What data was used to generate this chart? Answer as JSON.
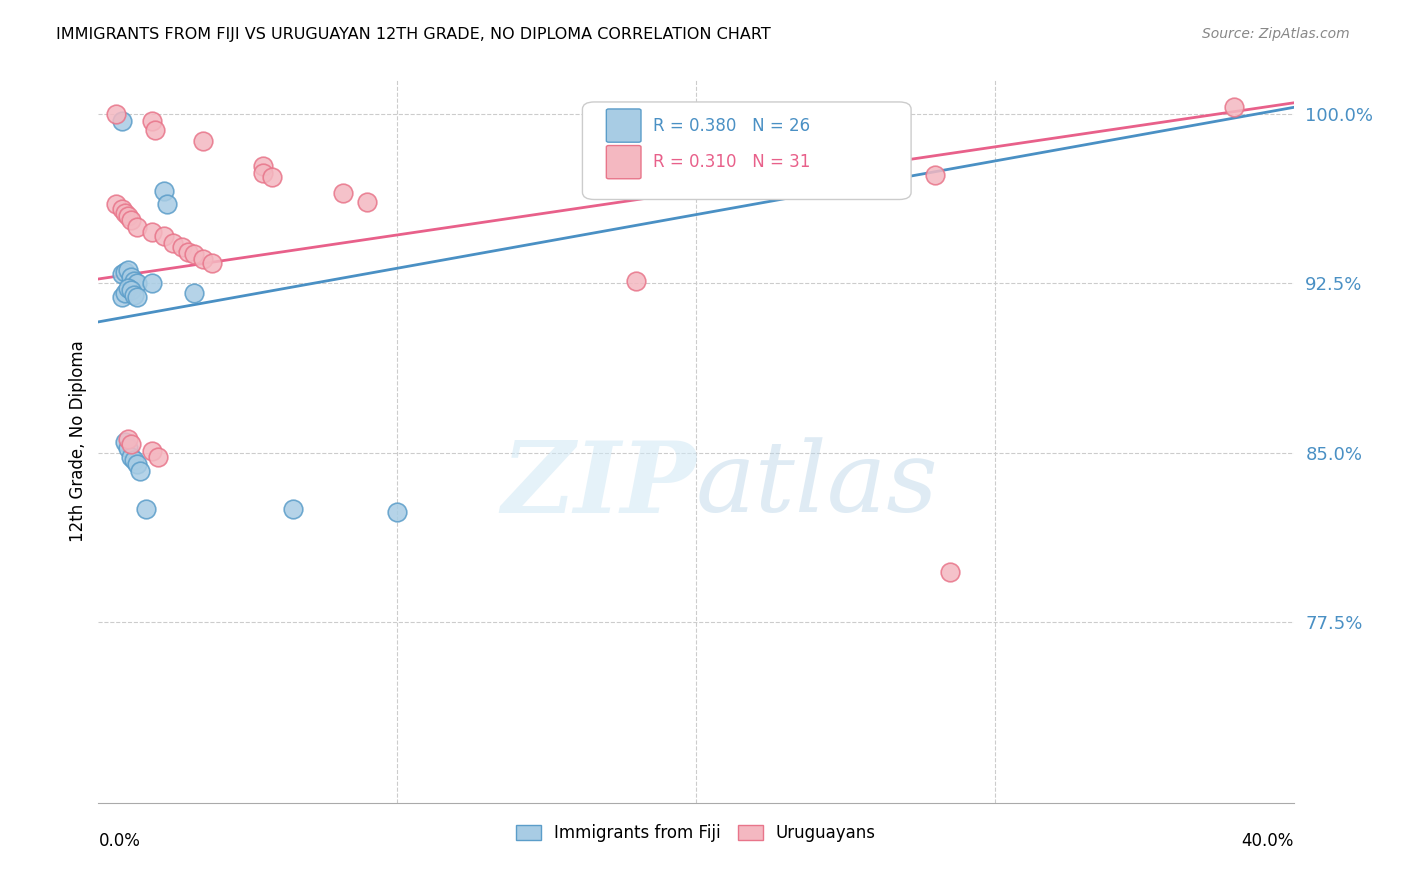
{
  "title": "IMMIGRANTS FROM FIJI VS URUGUAYAN 12TH GRADE, NO DIPLOMA CORRELATION CHART",
  "source": "Source: ZipAtlas.com",
  "ylabel": "12th Grade, No Diploma",
  "xlim": [
    0.0,
    0.4
  ],
  "ylim": [
    0.695,
    1.015
  ],
  "ytick_vals": [
    0.775,
    0.85,
    0.925,
    1.0
  ],
  "ytick_labels": [
    "77.5%",
    "85.0%",
    "92.5%",
    "100.0%"
  ],
  "legend_r1": "R = 0.380",
  "legend_n1": "N = 26",
  "legend_r2": "R = 0.310",
  "legend_n2": "N = 31",
  "legend_label1": "Immigrants from Fiji",
  "legend_label2": "Uruguayans",
  "fiji_color": "#a8cce4",
  "fiji_edge_color": "#5b9dc9",
  "uruguayan_color": "#f4b8c1",
  "uruguayan_edge_color": "#e8758a",
  "trend_blue": "#4a90c4",
  "trend_pink": "#e8608a",
  "watermark_color": "#daeaf5",
  "fiji_x": [
    0.008,
    0.022,
    0.023,
    0.008,
    0.009,
    0.01,
    0.011,
    0.012,
    0.013,
    0.008,
    0.009,
    0.01,
    0.011,
    0.012,
    0.013,
    0.009,
    0.01,
    0.011,
    0.012,
    0.013,
    0.014,
    0.016,
    0.032,
    0.018,
    0.065,
    0.1
  ],
  "fiji_y": [
    0.997,
    0.966,
    0.96,
    0.929,
    0.93,
    0.931,
    0.928,
    0.926,
    0.925,
    0.919,
    0.921,
    0.923,
    0.922,
    0.92,
    0.919,
    0.855,
    0.852,
    0.848,
    0.847,
    0.845,
    0.842,
    0.825,
    0.921,
    0.925,
    0.825,
    0.824
  ],
  "uruguayan_x": [
    0.006,
    0.018,
    0.019,
    0.035,
    0.006,
    0.008,
    0.009,
    0.01,
    0.011,
    0.013,
    0.018,
    0.022,
    0.025,
    0.028,
    0.03,
    0.032,
    0.035,
    0.038,
    0.055,
    0.055,
    0.058,
    0.082,
    0.09,
    0.01,
    0.011,
    0.018,
    0.02,
    0.18,
    0.28,
    0.38,
    0.285
  ],
  "uruguayan_y": [
    1.0,
    0.997,
    0.993,
    0.988,
    0.96,
    0.958,
    0.956,
    0.955,
    0.953,
    0.95,
    0.948,
    0.946,
    0.943,
    0.941,
    0.939,
    0.938,
    0.936,
    0.934,
    0.977,
    0.974,
    0.972,
    0.965,
    0.961,
    0.856,
    0.854,
    0.851,
    0.848,
    0.926,
    0.973,
    1.003,
    0.797
  ],
  "blue_line_x0": 0.0,
  "blue_line_y0": 0.908,
  "blue_line_x1": 0.4,
  "blue_line_y1": 1.003,
  "pink_line_x0": 0.0,
  "pink_line_y0": 0.927,
  "pink_line_x1": 0.4,
  "pink_line_y1": 1.005
}
